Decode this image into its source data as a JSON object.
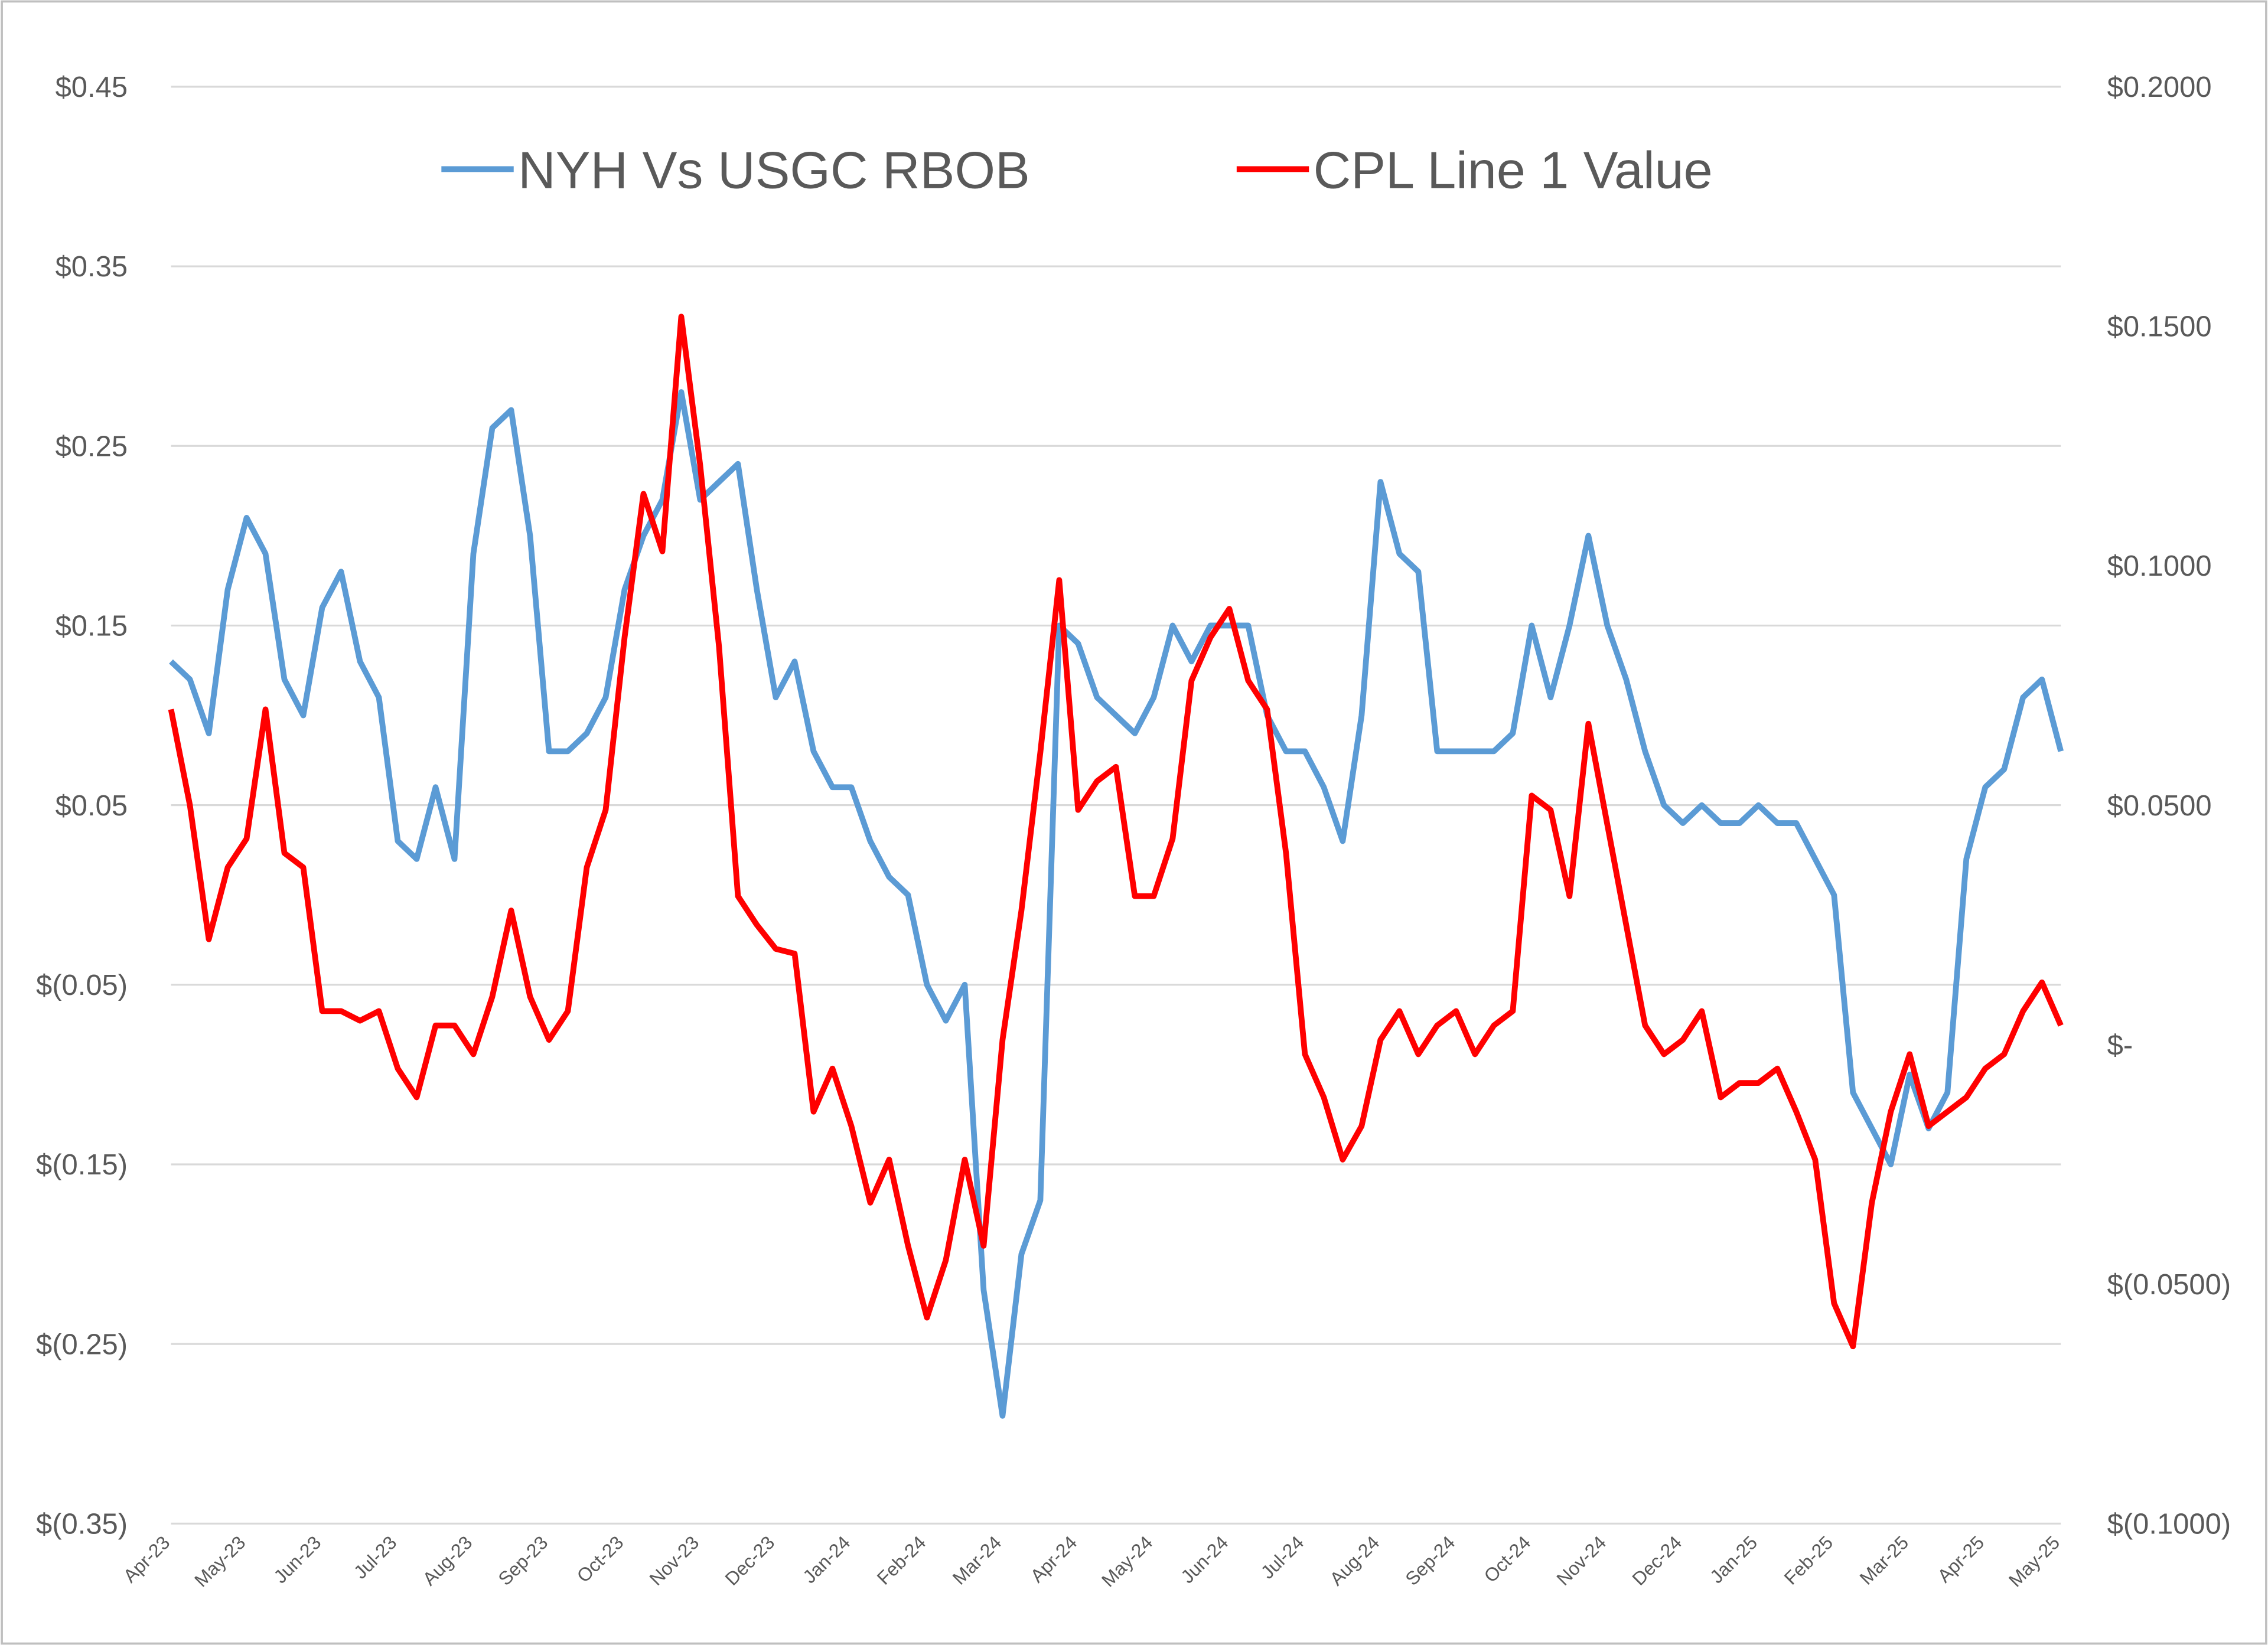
{
  "chart_data": {
    "type": "line",
    "categories": [
      "Apr-23",
      null,
      null,
      null,
      "May-23",
      null,
      null,
      null,
      "Jun-23",
      null,
      null,
      null,
      "Jul-23",
      null,
      null,
      null,
      "Aug-23",
      null,
      null,
      null,
      "Sep-23",
      null,
      null,
      null,
      "Oct-23",
      null,
      null,
      null,
      "Nov-23",
      null,
      null,
      null,
      "Dec-23",
      null,
      null,
      null,
      "Jan-24",
      null,
      null,
      null,
      "Feb-24",
      null,
      null,
      null,
      "Mar-24",
      null,
      null,
      null,
      "Apr-24",
      null,
      null,
      null,
      "May-24",
      null,
      null,
      null,
      "Jun-24",
      null,
      null,
      null,
      "Jul-24",
      null,
      null,
      null,
      "Aug-24",
      null,
      null,
      null,
      "Sep-24",
      null,
      null,
      null,
      "Oct-24",
      null,
      null,
      null,
      "Nov-24",
      null,
      null,
      null,
      "Dec-24",
      null,
      null,
      null,
      "Jan-25",
      null,
      null,
      null,
      "Feb-25",
      null,
      null,
      null,
      "Mar-25",
      null,
      null,
      null,
      "Apr-25",
      null,
      null,
      null,
      "May-25"
    ],
    "series": [
      {
        "name": "NYH Vs USGC RBOB",
        "color": "#5b9bd5",
        "axis": "y",
        "values": [
          0.13,
          0.12,
          0.09,
          0.17,
          0.21,
          0.19,
          0.12,
          0.1,
          0.16,
          0.18,
          0.13,
          0.11,
          0.03,
          0.02,
          0.06,
          0.02,
          0.19,
          0.26,
          0.27,
          0.2,
          0.08,
          0.08,
          0.09,
          0.11,
          0.17,
          0.2,
          0.22,
          0.28,
          0.22,
          0.23,
          0.24,
          0.17,
          0.11,
          0.13,
          0.08,
          0.06,
          0.06,
          0.03,
          0.01,
          0.0,
          -0.05,
          -0.07,
          -0.05,
          -0.22,
          -0.29,
          -0.2,
          -0.17,
          0.15,
          0.14,
          0.11,
          0.1,
          0.09,
          0.11,
          0.15,
          0.13,
          0.15,
          0.15,
          0.15,
          0.1,
          0.08,
          0.08,
          0.06,
          0.03,
          0.1,
          0.23,
          0.19,
          0.18,
          0.08,
          0.08,
          0.08,
          0.08,
          0.09,
          0.15,
          0.11,
          0.15,
          0.2,
          0.15,
          0.12,
          0.08,
          0.05,
          0.04,
          0.05,
          0.04,
          0.04,
          0.05,
          0.04,
          0.04,
          0.02,
          0.0,
          -0.11,
          -0.13,
          -0.15,
          -0.1,
          -0.13,
          -0.11,
          0.02,
          0.06,
          0.07,
          0.11,
          0.12,
          0.08
        ]
      },
      {
        "name": "CPL Line 1 Value",
        "color": "#ff0000",
        "axis": "y2",
        "values": [
          0.07,
          0.05,
          0.022,
          0.037,
          0.043,
          0.07,
          0.04,
          0.037,
          0.007,
          0.007,
          0.005,
          0.007,
          -0.005,
          -0.011,
          0.004,
          0.004,
          -0.002,
          0.01,
          0.028,
          0.01,
          0.001,
          0.007,
          0.037,
          0.049,
          0.085,
          0.115,
          0.103,
          0.152,
          0.121,
          0.083,
          0.031,
          0.025,
          0.02,
          0.019,
          -0.014,
          -0.005,
          -0.017,
          -0.033,
          -0.024,
          -0.042,
          -0.057,
          -0.045,
          -0.024,
          -0.042,
          0.001,
          0.028,
          0.061,
          0.097,
          0.049,
          0.055,
          0.058,
          0.031,
          0.031,
          0.043,
          0.076,
          0.085,
          0.091,
          0.076,
          0.07,
          0.04,
          -0.002,
          -0.011,
          -0.024,
          -0.017,
          0.001,
          0.007,
          -0.002,
          0.004,
          0.007,
          -0.002,
          0.004,
          0.007,
          0.052,
          0.049,
          0.031,
          0.067,
          0.046,
          0.025,
          0.004,
          -0.002,
          0.001,
          0.007,
          -0.011,
          -0.008,
          -0.008,
          -0.005,
          -0.014,
          -0.024,
          -0.054,
          -0.063,
          -0.033,
          -0.014,
          -0.002,
          -0.017,
          -0.014,
          -0.011,
          -0.005,
          -0.002,
          0.007,
          0.013,
          0.004
        ]
      }
    ],
    "ylim": [
      -0.35,
      0.45
    ],
    "yticks": [
      {
        "value": 0.45,
        "label": "$0.45"
      },
      {
        "value": 0.35,
        "label": "$0.35"
      },
      {
        "value": 0.25,
        "label": "$0.25"
      },
      {
        "value": 0.15,
        "label": "$0.15"
      },
      {
        "value": 0.05,
        "label": "$0.05"
      },
      {
        "value": -0.05,
        "label": "$(0.05)"
      },
      {
        "value": -0.15,
        "label": "$(0.15)"
      },
      {
        "value": -0.25,
        "label": "$(0.25)"
      },
      {
        "value": -0.35,
        "label": "$(0.35)"
      }
    ],
    "y2lim": [
      -0.1,
      0.2
    ],
    "y2ticks": [
      {
        "value": 0.2,
        "label": "$0.2000"
      },
      {
        "value": 0.15,
        "label": "$0.1500"
      },
      {
        "value": 0.1,
        "label": "$0.1000"
      },
      {
        "value": 0.05,
        "label": "$0.0500"
      },
      {
        "value": 0,
        "label": "$-"
      },
      {
        "value": -0.05,
        "label": "$(0.0500)"
      },
      {
        "value": -0.1,
        "label": "$(0.1000)"
      }
    ],
    "grid": true,
    "legend": "top"
  }
}
